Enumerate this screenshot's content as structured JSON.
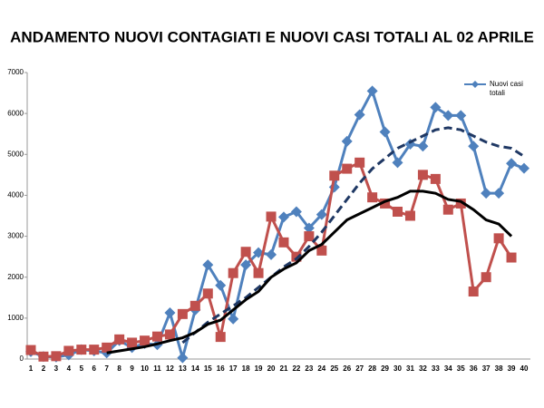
{
  "chart_data": {
    "type": "line",
    "title": "ANDAMENTO NUOVI CONTAGIATI E NUOVI CASI TOTALI AL 02 APRILE",
    "categories": [
      1,
      2,
      3,
      4,
      5,
      6,
      7,
      8,
      9,
      10,
      11,
      12,
      13,
      14,
      15,
      16,
      17,
      18,
      19,
      20,
      21,
      22,
      23,
      24,
      25,
      26,
      27,
      28,
      29,
      30,
      31,
      32,
      33,
      34,
      35,
      36,
      37,
      38,
      39,
      40
    ],
    "ylim": [
      0,
      7000
    ],
    "yticks": [
      0,
      1000,
      2000,
      3000,
      4000,
      5000,
      6000,
      7000
    ],
    "grid": false,
    "legend": "top-right",
    "series": [
      {
        "name": "Nuovi casi totali",
        "color": "#4f81bd",
        "marker": "diamond",
        "dashed": false,
        "values": [
          180,
          60,
          50,
          100,
          230,
          200,
          150,
          450,
          280,
          380,
          350,
          1130,
          30,
          1200,
          2300,
          1800,
          980,
          2300,
          2600,
          2550,
          3470,
          3600,
          3200,
          3530,
          4200,
          5320,
          5970,
          6550,
          5550,
          4800,
          5250,
          5200,
          6150,
          5950,
          5950,
          5200,
          4050,
          4050,
          4780,
          4660
        ]
      },
      {
        "color": "#c0504d",
        "marker": "square",
        "dashed": false,
        "values": [
          220,
          60,
          70,
          200,
          230,
          230,
          280,
          480,
          400,
          450,
          550,
          600,
          1100,
          1300,
          1600,
          540,
          2100,
          2620,
          2100,
          3480,
          2850,
          2500,
          3000,
          2650,
          4480,
          4650,
          4800,
          3950,
          3800,
          3600,
          3500,
          4500,
          4400,
          3650,
          3800,
          1650,
          2000,
          2950,
          2480,
          null
        ]
      },
      {
        "color": "#1f3864",
        "marker": null,
        "dashed": true,
        "values": [
          null,
          null,
          null,
          null,
          null,
          null,
          null,
          null,
          null,
          null,
          null,
          null,
          400,
          650,
          900,
          1100,
          1300,
          1500,
          1750,
          2000,
          2250,
          2450,
          2750,
          3100,
          3500,
          3900,
          4300,
          4650,
          4900,
          5150,
          5300,
          5450,
          5600,
          5650,
          5600,
          5450,
          5300,
          5200,
          5150,
          4950
        ]
      },
      {
        "color": "#000000",
        "marker": null,
        "dashed": false,
        "values": [
          null,
          null,
          null,
          null,
          null,
          null,
          150,
          200,
          250,
          300,
          370,
          450,
          520,
          650,
          850,
          950,
          1200,
          1450,
          1650,
          2000,
          2200,
          2350,
          2650,
          2800,
          3100,
          3400,
          3550,
          3700,
          3850,
          3950,
          4100,
          4100,
          4050,
          3900,
          3850,
          3650,
          3400,
          3300,
          3000,
          null
        ]
      }
    ]
  }
}
